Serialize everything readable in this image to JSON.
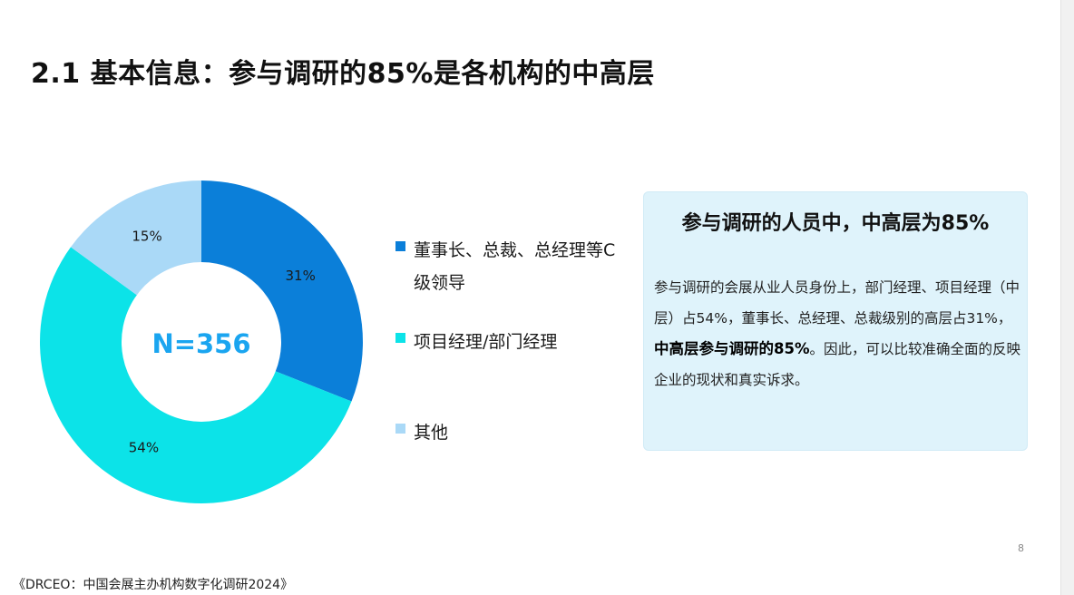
{
  "slide": {
    "title": "2.1 基本信息：参与调研的85%是各机构的中高层",
    "page_number": "8",
    "footnote": "《DRCEO：中国会展主办机构数字化调研2024》"
  },
  "chart_data": {
    "type": "pie",
    "variant": "donut",
    "center_label": "N=356",
    "categories": [
      "董事长、总裁、总经理等C级领导",
      "项目经理/部门经理",
      "其他"
    ],
    "values": [
      31,
      54,
      15
    ],
    "value_labels": [
      "31%",
      "54%",
      "15%"
    ],
    "colors": [
      "#0b7fd9",
      "#0ce3e8",
      "#aad9f7"
    ],
    "center_label_color": "#1aa5f0",
    "legend_position": "right"
  },
  "legend": {
    "items": [
      {
        "label": "董事长、总裁、总经理等C级领导",
        "color": "#0b7fd9"
      },
      {
        "label": "项目经理/部门经理",
        "color": "#0ce3e8"
      },
      {
        "label": "其他",
        "color": "#aad9f7"
      }
    ]
  },
  "info_box": {
    "heading": "参与调研的人员中，中高层为85%",
    "body_part1": "参与调研的会展从业人员身份上，部门经理、项目经理（中层）占54%，董事长、总经理、总裁级别的高层占31%，",
    "body_bold": "中高层参与调研的85%",
    "body_part2": "。因此，可以比较准确全面的反映企业的现状和真实诉求。"
  }
}
